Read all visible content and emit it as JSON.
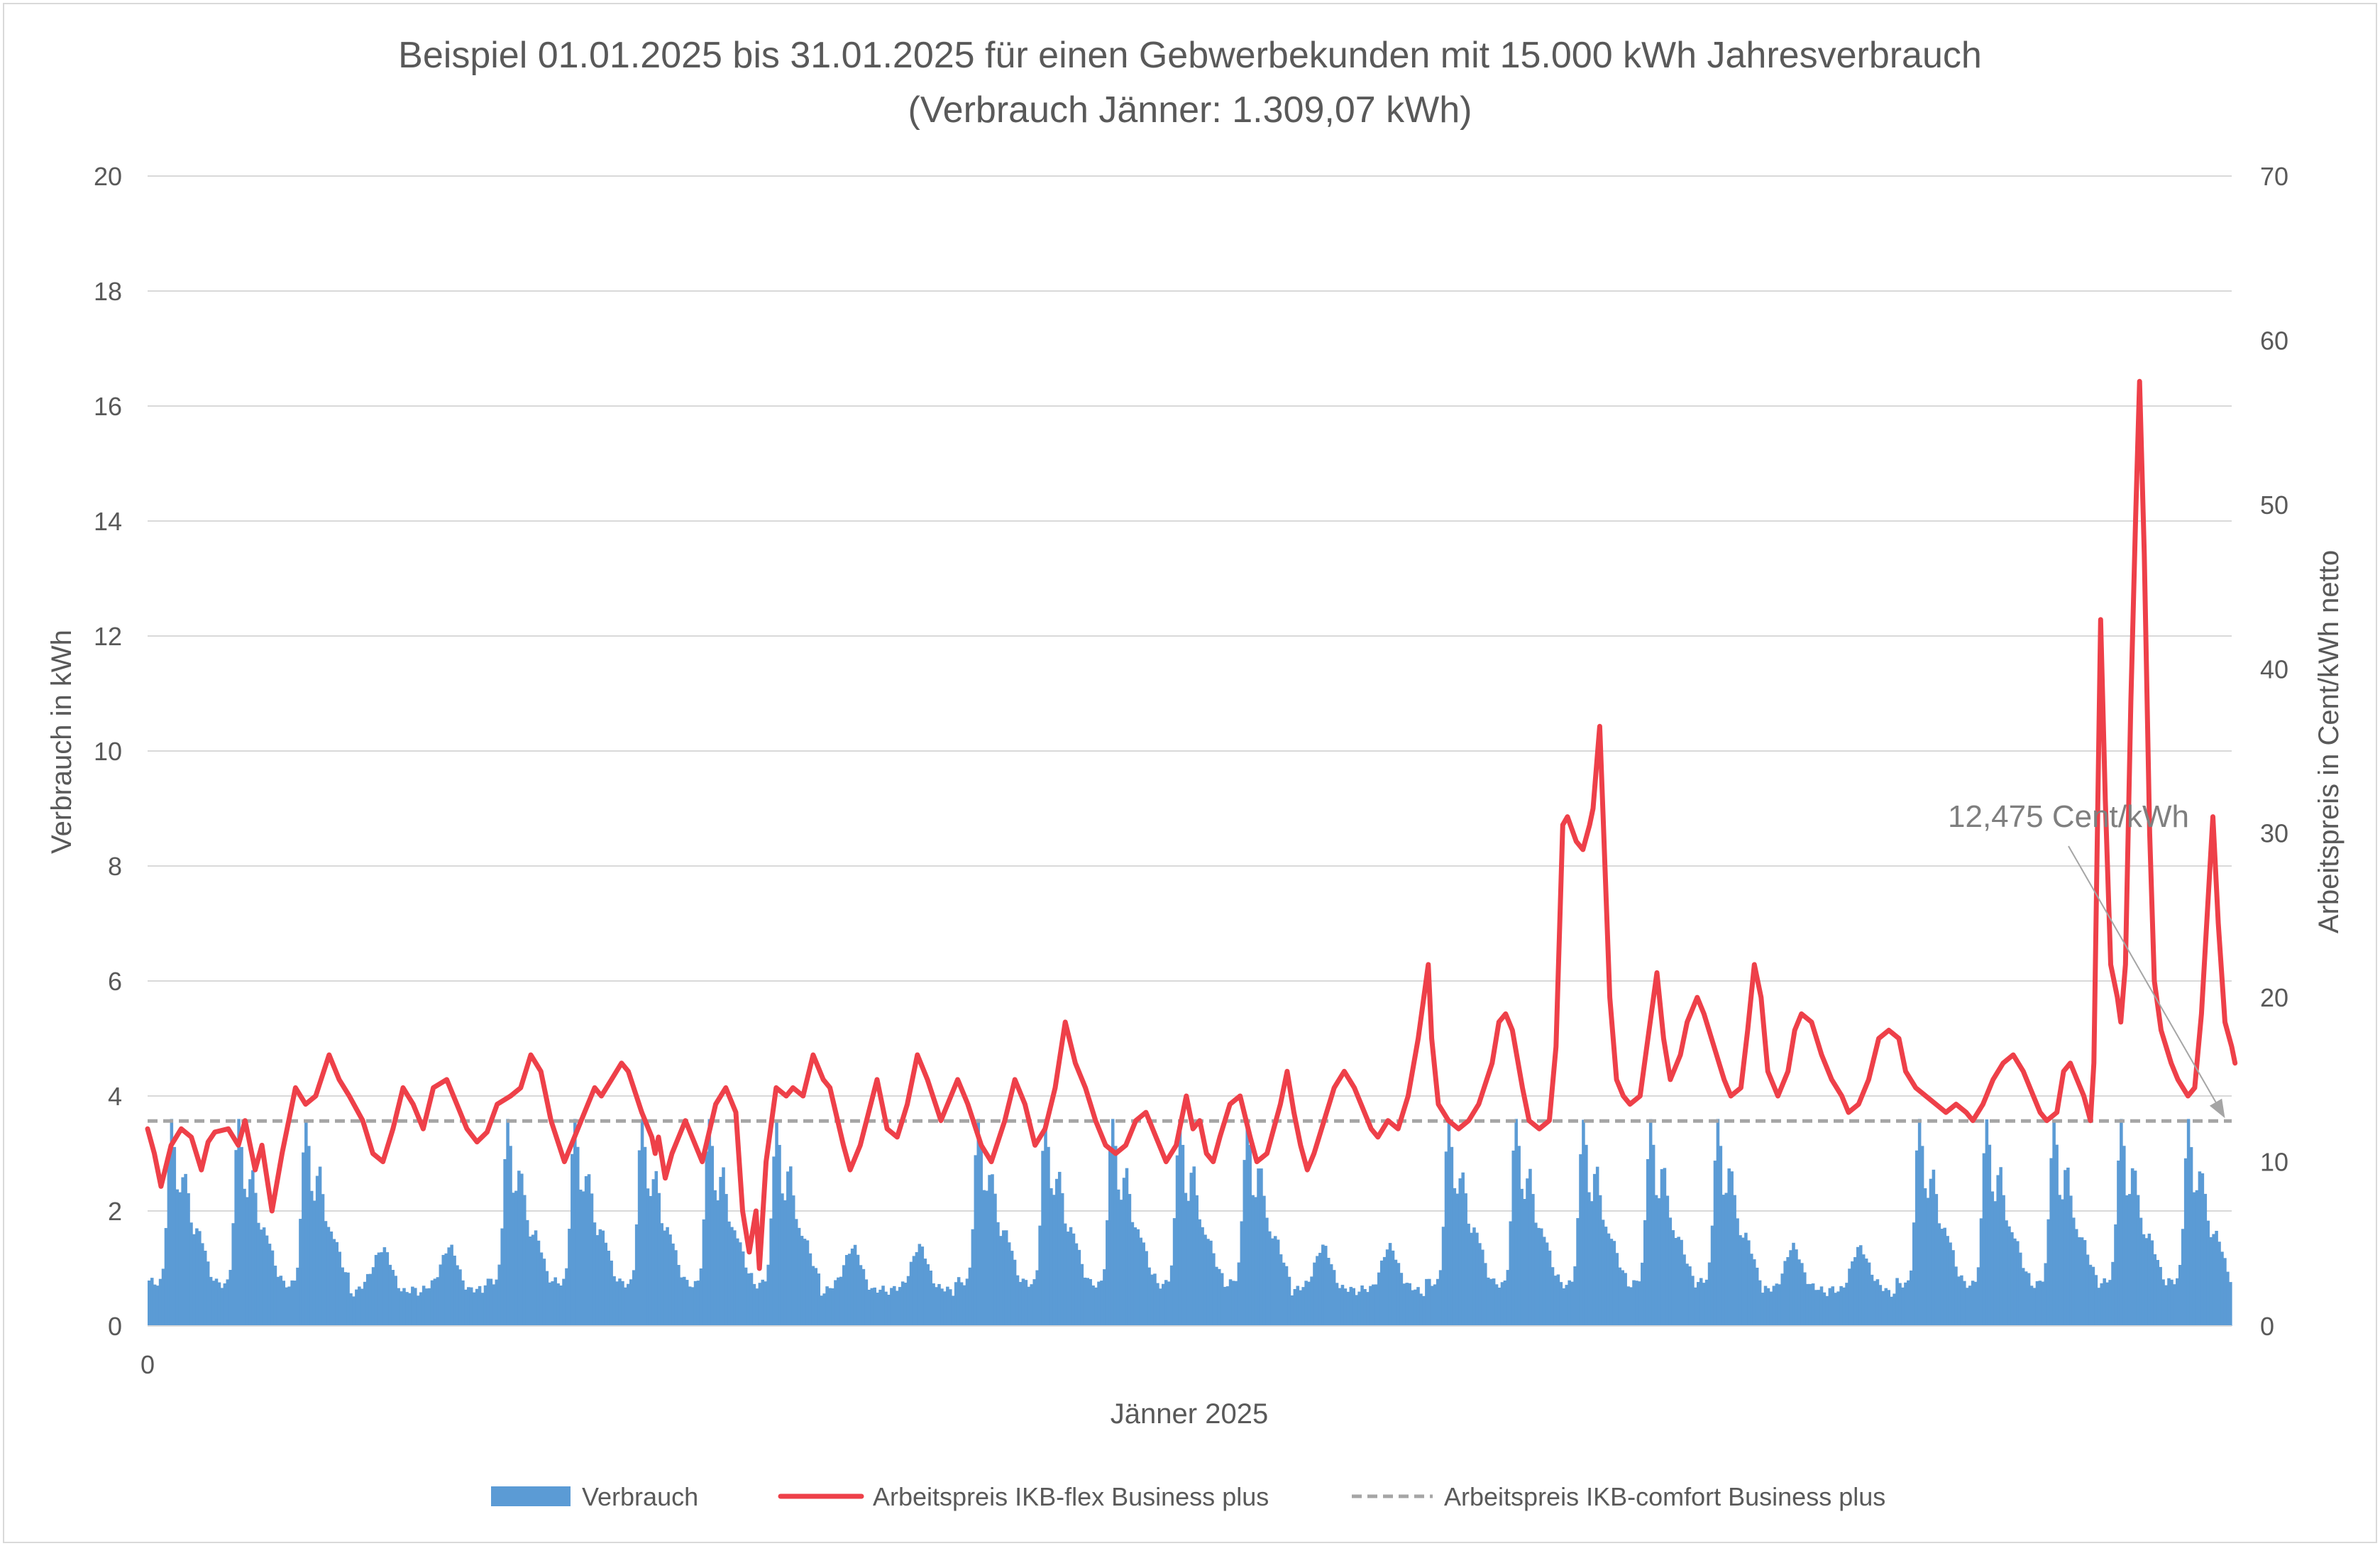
{
  "chart_data": {
    "type": "bar+line",
    "title_line1": "Beispiel 01.01.2025 bis 31.01.2025 für einen Gebwerbekunden mit 15.000 kWh Jahresverbrauch",
    "title_line2": "(Verbrauch Jänner: 1.309,07 kWh)",
    "xlabel": "Jänner 2025",
    "x_tick_label": "0",
    "ylabel_left": "Verbrauch in kWh",
    "ylabel_right": "Arbeitspreis in Cent/kWh netto",
    "ylim_left": [
      0,
      20
    ],
    "ylim_right": [
      0,
      70
    ],
    "yticks_left": [
      "0",
      "2",
      "4",
      "6",
      "8",
      "10",
      "12",
      "14",
      "16",
      "18",
      "20"
    ],
    "yticks_right": [
      "0",
      "10",
      "20",
      "30",
      "40",
      "50",
      "60",
      "70"
    ],
    "grid": true,
    "legend_position": "bottom",
    "annotation": {
      "text": "12,475 Cent/kWh",
      "target_day": 30.9,
      "target_value": 12.475
    },
    "colors": {
      "consumption": "#5b9bd5",
      "flex_price": "#ee4049",
      "comfort_price": "#a5a5a5",
      "grid": "#d9d9d9",
      "text": "#595959"
    },
    "series": [
      {
        "name": "Verbrauch",
        "kind": "bar",
        "axis": "left",
        "resolution": "hourly",
        "hours": 744,
        "weekday_profile": {
          "night_kwh": 0.75,
          "morning_peak_hour": 8,
          "morning_peak_kwh": 3.6,
          "midday_kwh": 2.6,
          "evening_kwh": 1.6
        },
        "weekend_profile": {
          "night_kwh": 0.6,
          "peak_kwh": 1.35
        },
        "weekend_days": [
          3,
          4,
          10,
          11,
          17,
          18,
          24,
          25
        ]
      },
      {
        "name": "Arbeitspreis IKB-flex Business plus",
        "kind": "line",
        "axis": "right",
        "resolution": "daily_keypoints",
        "points": [
          [
            0.0,
            12.0
          ],
          [
            0.1,
            10.5
          ],
          [
            0.2,
            8.5
          ],
          [
            0.35,
            11.0
          ],
          [
            0.5,
            12.0
          ],
          [
            0.65,
            11.5
          ],
          [
            0.8,
            9.5
          ],
          [
            0.9,
            11.2
          ],
          [
            1.0,
            11.8
          ],
          [
            1.2,
            12.0
          ],
          [
            1.35,
            11.0
          ],
          [
            1.45,
            12.5
          ],
          [
            1.6,
            9.5
          ],
          [
            1.7,
            11.0
          ],
          [
            1.85,
            7.0
          ],
          [
            2.0,
            10.5
          ],
          [
            2.2,
            14.5
          ],
          [
            2.35,
            13.5
          ],
          [
            2.5,
            14.0
          ],
          [
            2.7,
            16.5
          ],
          [
            2.85,
            15.0
          ],
          [
            3.0,
            14.0
          ],
          [
            3.2,
            12.5
          ],
          [
            3.35,
            10.5
          ],
          [
            3.5,
            10.0
          ],
          [
            3.65,
            12.0
          ],
          [
            3.8,
            14.5
          ],
          [
            3.95,
            13.5
          ],
          [
            4.1,
            12.0
          ],
          [
            4.25,
            14.5
          ],
          [
            4.45,
            15.0
          ],
          [
            4.6,
            13.5
          ],
          [
            4.75,
            12.0
          ],
          [
            4.9,
            11.2
          ],
          [
            5.05,
            11.8
          ],
          [
            5.2,
            13.5
          ],
          [
            5.4,
            14.0
          ],
          [
            5.55,
            14.5
          ],
          [
            5.7,
            16.5
          ],
          [
            5.85,
            15.5
          ],
          [
            6.0,
            12.5
          ],
          [
            6.2,
            10.0
          ],
          [
            6.35,
            11.5
          ],
          [
            6.5,
            13.0
          ],
          [
            6.65,
            14.5
          ],
          [
            6.75,
            14.0
          ],
          [
            6.9,
            15.0
          ],
          [
            7.05,
            16.0
          ],
          [
            7.15,
            15.5
          ],
          [
            7.35,
            13.0
          ],
          [
            7.5,
            11.5
          ],
          [
            7.55,
            10.5
          ],
          [
            7.6,
            11.5
          ],
          [
            7.7,
            9.0
          ],
          [
            7.8,
            10.5
          ],
          [
            8.0,
            12.5
          ],
          [
            8.15,
            11.0
          ],
          [
            8.25,
            10.0
          ],
          [
            8.45,
            13.5
          ],
          [
            8.6,
            14.5
          ],
          [
            8.75,
            13.0
          ],
          [
            8.85,
            7.0
          ],
          [
            8.95,
            4.5
          ],
          [
            9.05,
            7.0
          ],
          [
            9.1,
            3.5
          ],
          [
            9.2,
            10.0
          ],
          [
            9.35,
            14.5
          ],
          [
            9.5,
            14.0
          ],
          [
            9.6,
            14.5
          ],
          [
            9.75,
            14.0
          ],
          [
            9.9,
            16.5
          ],
          [
            10.05,
            15.0
          ],
          [
            10.15,
            14.5
          ],
          [
            10.35,
            11.0
          ],
          [
            10.45,
            9.5
          ],
          [
            10.6,
            11.0
          ],
          [
            10.85,
            15.0
          ],
          [
            11.0,
            12.0
          ],
          [
            11.15,
            11.5
          ],
          [
            11.3,
            13.5
          ],
          [
            11.45,
            16.5
          ],
          [
            11.6,
            15.0
          ],
          [
            11.8,
            12.5
          ],
          [
            12.05,
            15.0
          ],
          [
            12.2,
            13.5
          ],
          [
            12.4,
            11.0
          ],
          [
            12.55,
            10.0
          ],
          [
            12.75,
            12.5
          ],
          [
            12.9,
            15.0
          ],
          [
            13.05,
            13.5
          ],
          [
            13.2,
            11.0
          ],
          [
            13.35,
            12.0
          ],
          [
            13.5,
            14.5
          ],
          [
            13.65,
            18.5
          ],
          [
            13.8,
            16.0
          ],
          [
            13.95,
            14.5
          ],
          [
            14.1,
            12.5
          ],
          [
            14.25,
            11.0
          ],
          [
            14.4,
            10.5
          ],
          [
            14.55,
            11.0
          ],
          [
            14.7,
            12.5
          ],
          [
            14.85,
            13.0
          ],
          [
            15.0,
            11.5
          ],
          [
            15.15,
            10.0
          ],
          [
            15.3,
            11.0
          ],
          [
            15.45,
            14.0
          ],
          [
            15.55,
            12.0
          ],
          [
            15.65,
            12.5
          ],
          [
            15.75,
            10.5
          ],
          [
            15.85,
            10.0
          ],
          [
            15.95,
            11.5
          ],
          [
            16.1,
            13.5
          ],
          [
            16.25,
            14.0
          ],
          [
            16.4,
            11.5
          ],
          [
            16.5,
            10.0
          ],
          [
            16.65,
            10.5
          ],
          [
            16.85,
            13.5
          ],
          [
            16.95,
            15.5
          ],
          [
            17.05,
            13.0
          ],
          [
            17.15,
            11.0
          ],
          [
            17.25,
            9.5
          ],
          [
            17.35,
            10.5
          ],
          [
            17.5,
            12.5
          ],
          [
            17.65,
            14.5
          ],
          [
            17.8,
            15.5
          ],
          [
            17.95,
            14.5
          ],
          [
            18.1,
            13.0
          ],
          [
            18.2,
            12.0
          ],
          [
            18.3,
            11.5
          ],
          [
            18.45,
            12.5
          ],
          [
            18.6,
            12.0
          ],
          [
            18.75,
            14.0
          ],
          [
            18.9,
            17.5
          ],
          [
            19.0,
            20.5
          ],
          [
            19.05,
            22.0
          ],
          [
            19.1,
            17.5
          ],
          [
            19.2,
            13.5
          ],
          [
            19.35,
            12.5
          ],
          [
            19.5,
            12.0
          ],
          [
            19.65,
            12.5
          ],
          [
            19.8,
            13.5
          ],
          [
            20.0,
            16.0
          ],
          [
            20.1,
            18.5
          ],
          [
            20.2,
            19.0
          ],
          [
            20.3,
            18.0
          ],
          [
            20.45,
            14.5
          ],
          [
            20.55,
            12.5
          ],
          [
            20.7,
            12.0
          ],
          [
            20.85,
            12.5
          ],
          [
            20.95,
            17.0
          ],
          [
            21.05,
            30.5
          ],
          [
            21.12,
            31.0
          ],
          [
            21.25,
            29.5
          ],
          [
            21.35,
            29.0
          ],
          [
            21.45,
            30.5
          ],
          [
            21.5,
            31.5
          ],
          [
            21.55,
            34.0
          ],
          [
            21.6,
            36.5
          ],
          [
            21.65,
            31.0
          ],
          [
            21.75,
            20.0
          ],
          [
            21.85,
            15.0
          ],
          [
            21.95,
            14.0
          ],
          [
            22.05,
            13.5
          ],
          [
            22.2,
            14.0
          ],
          [
            22.35,
            18.5
          ],
          [
            22.45,
            21.5
          ],
          [
            22.55,
            17.5
          ],
          [
            22.65,
            15.0
          ],
          [
            22.8,
            16.5
          ],
          [
            22.9,
            18.5
          ],
          [
            23.05,
            20.0
          ],
          [
            23.15,
            19.0
          ],
          [
            23.3,
            17.0
          ],
          [
            23.45,
            15.0
          ],
          [
            23.55,
            14.0
          ],
          [
            23.7,
            14.5
          ],
          [
            23.8,
            18.0
          ],
          [
            23.9,
            22.0
          ],
          [
            24.0,
            20.0
          ],
          [
            24.1,
            15.5
          ],
          [
            24.25,
            14.0
          ],
          [
            24.4,
            15.5
          ],
          [
            24.5,
            18.0
          ],
          [
            24.6,
            19.0
          ],
          [
            24.75,
            18.5
          ],
          [
            24.9,
            16.5
          ],
          [
            25.05,
            15.0
          ],
          [
            25.2,
            14.0
          ],
          [
            25.3,
            13.0
          ],
          [
            25.45,
            13.5
          ],
          [
            25.6,
            15.0
          ],
          [
            25.75,
            17.5
          ],
          [
            25.9,
            18.0
          ],
          [
            26.05,
            17.5
          ],
          [
            26.15,
            15.5
          ],
          [
            26.3,
            14.5
          ],
          [
            26.45,
            14.0
          ],
          [
            26.6,
            13.5
          ],
          [
            26.75,
            13.0
          ],
          [
            26.9,
            13.5
          ],
          [
            27.05,
            13.0
          ],
          [
            27.15,
            12.5
          ],
          [
            27.3,
            13.5
          ],
          [
            27.45,
            15.0
          ],
          [
            27.6,
            16.0
          ],
          [
            27.75,
            16.5
          ],
          [
            27.9,
            15.5
          ],
          [
            28.05,
            14.0
          ],
          [
            28.15,
            13.0
          ],
          [
            28.25,
            12.5
          ],
          [
            28.4,
            13.0
          ],
          [
            28.5,
            15.5
          ],
          [
            28.6,
            16.0
          ],
          [
            28.7,
            15.0
          ],
          [
            28.8,
            14.0
          ],
          [
            28.9,
            12.5
          ],
          [
            28.95,
            16.0
          ],
          [
            29.05,
            43.0
          ],
          [
            29.12,
            32.0
          ],
          [
            29.2,
            22.0
          ],
          [
            29.3,
            20.0
          ],
          [
            29.35,
            18.5
          ],
          [
            29.42,
            22.0
          ],
          [
            29.5,
            38.0
          ],
          [
            29.57,
            49.0
          ],
          [
            29.63,
            57.5
          ],
          [
            29.7,
            47.0
          ],
          [
            29.78,
            30.0
          ],
          [
            29.85,
            21.0
          ],
          [
            29.95,
            18.0
          ],
          [
            30.1,
            16.0
          ],
          [
            30.2,
            15.0
          ],
          [
            30.35,
            14.0
          ],
          [
            30.45,
            14.5
          ],
          [
            30.55,
            19.0
          ],
          [
            30.65,
            26.0
          ],
          [
            30.72,
            31.0
          ],
          [
            30.8,
            24.5
          ],
          [
            30.9,
            18.5
          ],
          [
            31.0,
            17.0
          ],
          [
            31.05,
            16.0
          ]
        ]
      },
      {
        "name": "Arbeitspreis IKB-comfort Business plus",
        "kind": "line",
        "style": "dashed",
        "axis": "right",
        "value": 12.475
      }
    ]
  }
}
